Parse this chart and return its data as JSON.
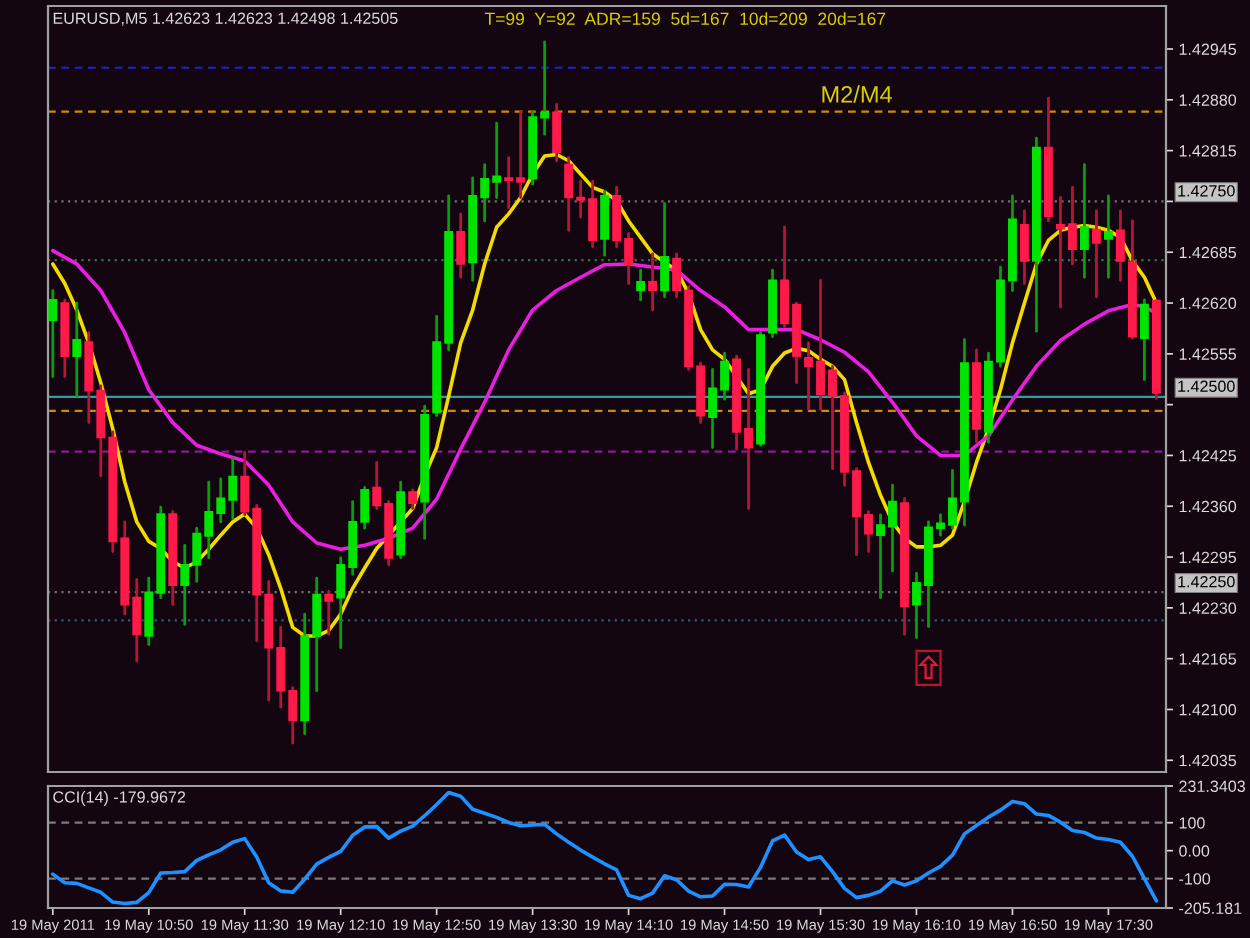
{
  "chart_data": [
    {
      "type": "candlestick",
      "title": "EURUSD,M5 1.42623 1.42623 1.42498 1.42505",
      "x": [
        "2011-05-19T10:10",
        "2011-05-19T10:15",
        "2011-05-19T10:20",
        "2011-05-19T10:25",
        "2011-05-19T10:30",
        "2011-05-19T10:35",
        "2011-05-19T10:40",
        "2011-05-19T10:45",
        "2011-05-19T10:50",
        "2011-05-19T10:55",
        "2011-05-19T11:00",
        "2011-05-19T11:05",
        "2011-05-19T11:10",
        "2011-05-19T11:15",
        "2011-05-19T11:20",
        "2011-05-19T11:25",
        "2011-05-19T11:30",
        "2011-05-19T11:35",
        "2011-05-19T11:40",
        "2011-05-19T11:45",
        "2011-05-19T11:50",
        "2011-05-19T11:55",
        "2011-05-19T12:00",
        "2011-05-19T12:05",
        "2011-05-19T12:10",
        "2011-05-19T12:15",
        "2011-05-19T12:20",
        "2011-05-19T12:25",
        "2011-05-19T12:30",
        "2011-05-19T12:35",
        "2011-05-19T12:40",
        "2011-05-19T12:45",
        "2011-05-19T12:50",
        "2011-05-19T12:55",
        "2011-05-19T13:00",
        "2011-05-19T13:05",
        "2011-05-19T13:10",
        "2011-05-19T13:15",
        "2011-05-19T13:20",
        "2011-05-19T13:25",
        "2011-05-19T13:30",
        "2011-05-19T13:35",
        "2011-05-19T13:40",
        "2011-05-19T13:45",
        "2011-05-19T13:50",
        "2011-05-19T13:55",
        "2011-05-19T14:00",
        "2011-05-19T14:05",
        "2011-05-19T14:10",
        "2011-05-19T14:15",
        "2011-05-19T14:20",
        "2011-05-19T14:25",
        "2011-05-19T14:30",
        "2011-05-19T14:35",
        "2011-05-19T14:40",
        "2011-05-19T14:45",
        "2011-05-19T14:50",
        "2011-05-19T14:55",
        "2011-05-19T15:00",
        "2011-05-19T15:05",
        "2011-05-19T15:10",
        "2011-05-19T15:15",
        "2011-05-19T15:20",
        "2011-05-19T15:25",
        "2011-05-19T15:30",
        "2011-05-19T15:35",
        "2011-05-19T15:40",
        "2011-05-19T15:45",
        "2011-05-19T15:50",
        "2011-05-19T15:55",
        "2011-05-19T16:00",
        "2011-05-19T16:05",
        "2011-05-19T16:10",
        "2011-05-19T16:15",
        "2011-05-19T16:20",
        "2011-05-19T16:25",
        "2011-05-19T16:30",
        "2011-05-19T16:35",
        "2011-05-19T16:40",
        "2011-05-19T16:45",
        "2011-05-19T16:50",
        "2011-05-19T16:55",
        "2011-05-19T17:00",
        "2011-05-19T17:05",
        "2011-05-19T17:10",
        "2011-05-19T17:15",
        "2011-05-19T17:20",
        "2011-05-19T17:25",
        "2011-05-19T17:30",
        "2011-05-19T17:35",
        "2011-05-19T17:40",
        "2011-05-19T17:45",
        "2011-05-19T17:50"
      ],
      "ohlc": [
        [
          1.42598,
          1.42636,
          1.42526,
          1.42624
        ],
        [
          1.4262,
          1.42624,
          1.42526,
          1.42552
        ],
        [
          1.42552,
          1.4262,
          1.42501,
          1.42573
        ],
        [
          1.4257,
          1.42582,
          1.42467,
          1.42508
        ],
        [
          1.42508,
          1.42514,
          1.42399,
          1.42448
        ],
        [
          1.42448,
          1.42455,
          1.42302,
          1.42315
        ],
        [
          1.42319,
          1.4234,
          1.42222,
          1.42234
        ],
        [
          1.42243,
          1.42266,
          1.42162,
          1.42196
        ],
        [
          1.42194,
          1.42268,
          1.42183,
          1.4225
        ],
        [
          1.42249,
          1.42359,
          1.42243,
          1.4235
        ],
        [
          1.4235,
          1.42353,
          1.42234,
          1.42259
        ],
        [
          1.42259,
          1.4231,
          1.42209,
          1.42285
        ],
        [
          1.42285,
          1.42332,
          1.42264,
          1.42325
        ],
        [
          1.42322,
          1.42391,
          1.42294,
          1.42353
        ],
        [
          1.42351,
          1.42395,
          1.4234,
          1.4237
        ],
        [
          1.42368,
          1.42421,
          1.42344,
          1.42398
        ],
        [
          1.42398,
          1.42429,
          1.42349,
          1.42353
        ],
        [
          1.42357,
          1.42361,
          1.42188,
          1.42247
        ],
        [
          1.42247,
          1.42264,
          1.42112,
          1.42179
        ],
        [
          1.42179,
          1.42205,
          1.42103,
          1.42124
        ],
        [
          1.42124,
          1.42128,
          1.42057,
          1.42086
        ],
        [
          1.42086,
          1.42222,
          1.42069,
          1.42194
        ],
        [
          1.42194,
          1.42268,
          1.42124,
          1.42247
        ],
        [
          1.42247,
          1.42251,
          1.42196,
          1.42239
        ],
        [
          1.42243,
          1.42294,
          1.42179,
          1.42285
        ],
        [
          1.42282,
          1.42366,
          1.42273,
          1.4234
        ],
        [
          1.4234,
          1.42384,
          1.42332,
          1.42381
        ],
        [
          1.42384,
          1.42416,
          1.42357,
          1.42361
        ],
        [
          1.42363,
          1.42366,
          1.42285,
          1.42294
        ],
        [
          1.42298,
          1.42391,
          1.42294,
          1.42378
        ],
        [
          1.42378,
          1.42381,
          1.42357,
          1.42364
        ],
        [
          1.42366,
          1.42488,
          1.42319,
          1.42477
        ],
        [
          1.4248,
          1.42603,
          1.42476,
          1.4257
        ],
        [
          1.42569,
          1.42757,
          1.4256,
          1.42711
        ],
        [
          1.42711,
          1.42734,
          1.42653,
          1.4267
        ],
        [
          1.42672,
          1.4278,
          1.42649,
          1.42757
        ],
        [
          1.42755,
          1.42797,
          1.42725,
          1.42779
        ],
        [
          1.42775,
          1.4285,
          1.42755,
          1.42782
        ],
        [
          1.4278,
          1.42806,
          1.42742,
          1.42777
        ],
        [
          1.4278,
          1.42865,
          1.42755,
          1.42775
        ],
        [
          1.42779,
          1.42865,
          1.42772,
          1.42858
        ],
        [
          1.42857,
          1.42954,
          1.42836,
          1.42864
        ],
        [
          1.42864,
          1.42874,
          1.42802,
          1.42813
        ],
        [
          1.42797,
          1.42806,
          1.42713,
          1.42755
        ],
        [
          1.42755,
          1.42776,
          1.4273,
          1.42752
        ],
        [
          1.42753,
          1.42776,
          1.42692,
          1.427
        ],
        [
          1.42702,
          1.42763,
          1.42681,
          1.42757
        ],
        [
          1.42757,
          1.42768,
          1.42692,
          1.427
        ],
        [
          1.42702,
          1.42709,
          1.42645,
          1.42669
        ],
        [
          1.42636,
          1.42662,
          1.42624,
          1.42647
        ],
        [
          1.42647,
          1.42683,
          1.42611,
          1.42636
        ],
        [
          1.42636,
          1.42747,
          1.42628,
          1.42679
        ],
        [
          1.42677,
          1.42683,
          1.42628,
          1.42636
        ],
        [
          1.42636,
          1.42641,
          1.42535,
          1.42539
        ],
        [
          1.42539,
          1.42543,
          1.42467,
          1.42476
        ],
        [
          1.42474,
          1.42535,
          1.42435,
          1.42511
        ],
        [
          1.42509,
          1.42556,
          1.42497,
          1.42545
        ],
        [
          1.42548,
          1.42552,
          1.42433,
          1.42455
        ],
        [
          1.42459,
          1.42535,
          1.42357,
          1.42435
        ],
        [
          1.4244,
          1.42582,
          1.42438,
          1.42579
        ],
        [
          1.42582,
          1.42662,
          1.42577,
          1.42649
        ],
        [
          1.42649,
          1.42717,
          1.4259,
          1.42594
        ],
        [
          1.42618,
          1.4262,
          1.42518,
          1.42552
        ],
        [
          1.4255,
          1.42569,
          1.42484,
          1.42539
        ],
        [
          1.42545,
          1.42649,
          1.42484,
          1.42503
        ],
        [
          1.42534,
          1.42539,
          1.42408,
          1.42501
        ],
        [
          1.42501,
          1.42505,
          1.42387,
          1.42404
        ],
        [
          1.42405,
          1.42408,
          1.42298,
          1.42347
        ],
        [
          1.42349,
          1.42353,
          1.42302,
          1.42325
        ],
        [
          1.42323,
          1.42349,
          1.42243,
          1.42336
        ],
        [
          1.42334,
          1.42387,
          1.42277,
          1.42366
        ],
        [
          1.42364,
          1.4237,
          1.42196,
          1.42232
        ],
        [
          1.42234,
          1.42274,
          1.42192,
          1.42262
        ],
        [
          1.42259,
          1.4234,
          1.42206,
          1.42333
        ],
        [
          1.42332,
          1.42349,
          1.42323,
          1.42338
        ],
        [
          1.42336,
          1.42406,
          1.42332,
          1.4237
        ],
        [
          1.42366,
          1.42573,
          1.42336,
          1.42543
        ],
        [
          1.42543,
          1.4256,
          1.42442,
          1.42459
        ],
        [
          1.42455,
          1.42556,
          1.42442,
          1.42545
        ],
        [
          1.42545,
          1.42666,
          1.42539,
          1.42649
        ],
        [
          1.42649,
          1.42757,
          1.42636,
          1.42727
        ],
        [
          1.4272,
          1.42738,
          1.42645,
          1.42674
        ],
        [
          1.42674,
          1.42831,
          1.42584,
          1.42819
        ],
        [
          1.42819,
          1.42882,
          1.42725,
          1.42731
        ],
        [
          1.4272,
          1.42755,
          1.42615,
          1.42715
        ],
        [
          1.42721,
          1.42768,
          1.4267,
          1.42689
        ],
        [
          1.42689,
          1.42797,
          1.42653,
          1.42717
        ],
        [
          1.42714,
          1.42738,
          1.42628,
          1.42697
        ],
        [
          1.42702,
          1.42757,
          1.42653,
          1.42711
        ],
        [
          1.42713,
          1.42738,
          1.42649,
          1.42674
        ],
        [
          1.42672,
          1.42725,
          1.42575,
          1.42577
        ],
        [
          1.42575,
          1.42624,
          1.42522,
          1.42618
        ],
        [
          1.42623,
          1.42623,
          1.42498,
          1.42505
        ]
      ],
      "colors": [
        "#00e400",
        "#ff1a4a",
        "#00e400",
        "#ff1a4a",
        "#ff1a4a",
        "#ff1a4a",
        "#ff1a4a",
        "#ff1a4a",
        "#00e400",
        "#00e400",
        "#ff1a4a",
        "#00e400",
        "#00e400",
        "#00e400",
        "#00e400",
        "#00e400",
        "#ff1a4a",
        "#ff1a4a",
        "#ff1a4a",
        "#ff1a4a",
        "#ff1a4a",
        "#00e400",
        "#00e400",
        "#ff1a4a",
        "#00e400",
        "#00e400",
        "#00e400",
        "#ff1a4a",
        "#ff1a4a",
        "#00e400",
        "#ff1a4a",
        "#00e400",
        "#00e400",
        "#00e400",
        "#ff1a4a",
        "#00e400",
        "#00e400",
        "#00e400",
        "#ff1a4a",
        "#ff1a4a",
        "#00e400",
        "#00e400",
        "#ff1a4a",
        "#ff1a4a",
        "#ff1a4a",
        "#ff1a4a",
        "#00e400",
        "#ff1a4a",
        "#ff1a4a",
        "#00e400",
        "#ff1a4a",
        "#00e400",
        "#ff1a4a",
        "#ff1a4a",
        "#ff1a4a",
        "#00e400",
        "#00e400",
        "#ff1a4a",
        "#ff1a4a",
        "#00e400",
        "#00e400",
        "#ff1a4a",
        "#ff1a4a",
        "#ff1a4a",
        "#ff1a4a",
        "#ff1a4a",
        "#ff1a4a",
        "#ff1a4a",
        "#ff1a4a",
        "#00e400",
        "#00e400",
        "#ff1a4a",
        "#00e400",
        "#00e400",
        "#00e400",
        "#00e400",
        "#00e400",
        "#ff1a4a",
        "#00e400",
        "#00e400",
        "#00e400",
        "#ff1a4a",
        "#00e400",
        "#ff1a4a",
        "#ff1a4a",
        "#ff1a4a",
        "#00e400",
        "#ff1a4a",
        "#00e400",
        "#ff1a4a",
        "#ff1a4a",
        "#00e400",
        "#ff1a4a"
      ],
      "series": [
        {
          "type": "line",
          "color": "#f2dc00",
          "values": [
            1.4267,
            1.42645,
            1.42611,
            1.42569,
            1.42518,
            1.42459,
            1.42391,
            1.4234,
            1.42315,
            1.42306,
            1.42289,
            1.42281,
            1.42289,
            1.42305,
            1.42323,
            1.4234,
            1.4235,
            1.42332,
            1.42298,
            1.42255,
            1.42205,
            1.42194,
            1.42194,
            1.42201,
            1.42222,
            1.42255,
            1.42281,
            1.42306,
            1.42323,
            1.4234,
            1.42357,
            1.42399,
            1.42435,
            1.42501,
            1.42569,
            1.42611,
            1.4267,
            1.42717,
            1.42734,
            1.42755,
            1.42785,
            1.42808,
            1.4281,
            1.42802,
            1.42785,
            1.42768,
            1.42762,
            1.42751,
            1.42725,
            1.42704,
            1.42683,
            1.42672,
            1.42662,
            1.42632,
            1.42586,
            1.4256,
            1.42548,
            1.42526,
            1.42504,
            1.42509,
            1.42539,
            1.42556,
            1.42562,
            1.42559,
            1.42548,
            1.42539,
            1.42522,
            1.42467,
            1.42416,
            1.42374,
            1.4234,
            1.42319,
            1.42308,
            1.42308,
            1.4231,
            1.42323,
            1.42366,
            1.42416,
            1.42459,
            1.42509,
            1.42569,
            1.4262,
            1.4267,
            1.427,
            1.42713,
            1.42717,
            1.42719,
            1.42717,
            1.42713,
            1.42704,
            1.42674,
            1.42653,
            1.4262
          ]
        },
        {
          "type": "line",
          "color": "#e81ee0",
          "x": [
            "2011-05-19T10:10",
            "2011-05-19T10:20",
            "2011-05-19T10:30",
            "2011-05-19T10:40",
            "2011-05-19T10:50",
            "2011-05-19T11:00",
            "2011-05-19T11:10",
            "2011-05-19T11:20",
            "2011-05-19T11:30",
            "2011-05-19T11:40",
            "2011-05-19T11:50",
            "2011-05-19T12:00",
            "2011-05-19T12:10",
            "2011-05-19T12:20",
            "2011-05-19T12:30",
            "2011-05-19T12:40",
            "2011-05-19T12:50",
            "2011-05-19T13:00",
            "2011-05-19T13:10",
            "2011-05-19T13:20",
            "2011-05-19T13:30",
            "2011-05-19T13:40",
            "2011-05-19T13:50",
            "2011-05-19T14:00",
            "2011-05-19T14:10",
            "2011-05-19T14:20",
            "2011-05-19T14:30",
            "2011-05-19T14:40",
            "2011-05-19T14:50",
            "2011-05-19T15:00",
            "2011-05-19T15:10",
            "2011-05-19T15:20",
            "2011-05-19T15:30",
            "2011-05-19T15:40",
            "2011-05-19T15:50",
            "2011-05-19T16:00",
            "2011-05-19T16:10",
            "2011-05-19T16:20",
            "2011-05-19T16:30",
            "2011-05-19T16:40",
            "2011-05-19T16:50",
            "2011-05-19T17:00",
            "2011-05-19T17:10",
            "2011-05-19T17:20",
            "2011-05-19T17:30",
            "2011-05-19T17:40",
            "2011-05-19T17:45",
            "2011-05-19T17:50"
          ],
          "values": [
            1.42687,
            1.4267,
            1.42636,
            1.42582,
            1.42509,
            1.42467,
            1.42438,
            1.42427,
            1.42418,
            1.42387,
            1.4234,
            1.42313,
            1.42305,
            1.4231,
            1.42319,
            1.42332,
            1.42369,
            1.42433,
            1.42493,
            1.4256,
            1.42611,
            1.42636,
            1.42653,
            1.42669,
            1.4267,
            1.42666,
            1.42662,
            1.42636,
            1.42615,
            1.42586,
            1.42586,
            1.42586,
            1.42573,
            1.42557,
            1.42532,
            1.42493,
            1.4245,
            1.42425,
            1.42425,
            1.4245,
            1.42496,
            1.42539,
            1.42572,
            1.42593,
            1.4261,
            1.42618,
            1.42615,
            1.42607
          ]
        }
      ],
      "xlim": [
        "2011-05-19T10:08",
        "2011-05-19T17:54"
      ],
      "ylim": [
        1.4202,
        1.43
      ],
      "yticks": [
        {
          "value": 1.42035,
          "label": "1.42035"
        },
        {
          "value": 1.421,
          "label": "1.42100"
        },
        {
          "value": 1.42165,
          "label": "1.42165"
        },
        {
          "value": 1.4223,
          "label": "1.42230"
        },
        {
          "value": 1.42295,
          "label": "1.42295"
        },
        {
          "value": 1.4236,
          "label": "1.42360"
        },
        {
          "value": 1.42425,
          "label": "1.42425"
        },
        {
          "value": 1.4249,
          "label": null
        },
        {
          "value": 1.42555,
          "label": "1.42555"
        },
        {
          "value": 1.4262,
          "label": "1.42620"
        },
        {
          "value": 1.42685,
          "label": "1.42685"
        },
        {
          "value": 1.4275,
          "label": null
        },
        {
          "value": 1.42815,
          "label": "1.42815"
        },
        {
          "value": 1.4288,
          "label": "1.42880"
        },
        {
          "value": 1.42945,
          "label": "1.42945"
        }
      ],
      "tick_labels": "y",
      "ref_lines": [
        {
          "axis": "y",
          "value": 1.42921,
          "color": "#2020d0",
          "line_style": "dashed"
        },
        {
          "axis": "y",
          "value": 1.42865,
          "color": "#d08a00",
          "line_style": "dashed"
        },
        {
          "axis": "y",
          "value": 1.4275,
          "color": "#707070",
          "line_style": "dotted",
          "label": "1.42750"
        },
        {
          "axis": "y",
          "value": 1.42675,
          "color": "#3c6e4a",
          "line_style": "dotted"
        },
        {
          "axis": "y",
          "value": 1.425,
          "color": "#2aa0a0",
          "line_style": "solid",
          "label": "1.42500"
        },
        {
          "axis": "y",
          "value": 1.42482,
          "color": "#d08a00",
          "line_style": "dashed"
        },
        {
          "axis": "y",
          "value": 1.4243,
          "color": "#8a1a9a",
          "line_style": "dashed"
        },
        {
          "axis": "y",
          "value": 1.4225,
          "color": "#707070",
          "line_style": "dotted",
          "label": "1.42250"
        },
        {
          "axis": "y",
          "value": 1.42214,
          "color": "#24607a",
          "line_style": "dotted"
        }
      ],
      "annotations": [
        "T=99  Y=92  ADR=159  5d=167  10d=209  20d=167",
        {
          "text": "M2/M4",
          "x": "2011-05-19T15:30",
          "y": 1.42865
        }
      ]
    },
    {
      "type": "line",
      "title": "CCI(14) -179.9672",
      "x": [
        "2011-05-19T10:10",
        "2011-05-19T10:15",
        "2011-05-19T10:20",
        "2011-05-19T10:25",
        "2011-05-19T10:30",
        "2011-05-19T10:35",
        "2011-05-19T10:40",
        "2011-05-19T10:45",
        "2011-05-19T10:50",
        "2011-05-19T10:55",
        "2011-05-19T11:00",
        "2011-05-19T11:05",
        "2011-05-19T11:10",
        "2011-05-19T11:15",
        "2011-05-19T11:20",
        "2011-05-19T11:25",
        "2011-05-19T11:30",
        "2011-05-19T11:35",
        "2011-05-19T11:40",
        "2011-05-19T11:45",
        "2011-05-19T11:50",
        "2011-05-19T11:55",
        "2011-05-19T12:00",
        "2011-05-19T12:05",
        "2011-05-19T12:10",
        "2011-05-19T12:15",
        "2011-05-19T12:20",
        "2011-05-19T12:25",
        "2011-05-19T12:30",
        "2011-05-19T12:35",
        "2011-05-19T12:40",
        "2011-05-19T12:45",
        "2011-05-19T12:50",
        "2011-05-19T12:55",
        "2011-05-19T13:00",
        "2011-05-19T13:05",
        "2011-05-19T13:10",
        "2011-05-19T13:15",
        "2011-05-19T13:20",
        "2011-05-19T13:25",
        "2011-05-19T13:30",
        "2011-05-19T13:35",
        "2011-05-19T13:40",
        "2011-05-19T13:45",
        "2011-05-19T13:50",
        "2011-05-19T13:55",
        "2011-05-19T14:00",
        "2011-05-19T14:05",
        "2011-05-19T14:10",
        "2011-05-19T14:15",
        "2011-05-19T14:20",
        "2011-05-19T14:25",
        "2011-05-19T14:30",
        "2011-05-19T14:35",
        "2011-05-19T14:40",
        "2011-05-19T14:45",
        "2011-05-19T14:50",
        "2011-05-19T14:55",
        "2011-05-19T15:00",
        "2011-05-19T15:05",
        "2011-05-19T15:10",
        "2011-05-19T15:15",
        "2011-05-19T15:20",
        "2011-05-19T15:25",
        "2011-05-19T15:30",
        "2011-05-19T15:35",
        "2011-05-19T15:40",
        "2011-05-19T15:45",
        "2011-05-19T15:50",
        "2011-05-19T15:55",
        "2011-05-19T16:00",
        "2011-05-19T16:05",
        "2011-05-19T16:10",
        "2011-05-19T16:15",
        "2011-05-19T16:20",
        "2011-05-19T16:25",
        "2011-05-19T16:30",
        "2011-05-19T16:35",
        "2011-05-19T16:40",
        "2011-05-19T16:45",
        "2011-05-19T16:50",
        "2011-05-19T16:55",
        "2011-05-19T17:00",
        "2011-05-19T17:05",
        "2011-05-19T17:10",
        "2011-05-19T17:15",
        "2011-05-19T17:20",
        "2011-05-19T17:25",
        "2011-05-19T17:30",
        "2011-05-19T17:35",
        "2011-05-19T17:40",
        "2011-05-19T17:45",
        "2011-05-19T17:50"
      ],
      "series": [
        {
          "color": "#1e90ff",
          "values": [
            -84,
            -115,
            -117,
            -133,
            -149,
            -184,
            -189,
            -185,
            -150,
            -80,
            -78,
            -75,
            -35,
            -15,
            3,
            30,
            43,
            -23,
            -115,
            -144,
            -149,
            -102,
            -48,
            -24,
            -3,
            55,
            85,
            86,
            45,
            70,
            88,
            125,
            165,
            208,
            195,
            148,
            134,
            119,
            101,
            89,
            92,
            94,
            60,
            30,
            2,
            -23,
            -47,
            -69,
            -160,
            -172,
            -152,
            -90,
            -104,
            -145,
            -165,
            -162,
            -120,
            -121,
            -130,
            -60,
            35,
            56,
            -5,
            -32,
            -22,
            -75,
            -135,
            -168,
            -160,
            -145,
            -108,
            -123,
            -108,
            -80,
            -56,
            -16,
            60,
            90,
            120,
            145,
            176,
            168,
            131,
            126,
            102,
            72,
            65,
            45,
            40,
            30,
            -20,
            -100,
            -179.9672
          ]
        }
      ],
      "xlim": [
        "2011-05-19T10:08",
        "2011-05-19T17:54"
      ],
      "xticks": [
        {
          "value": "2011-05-19T10:10",
          "label": "19 May 2011"
        },
        {
          "value": "2011-05-19T10:50",
          "label": "19 May 10:50"
        },
        {
          "value": "2011-05-19T11:30",
          "label": "19 May 11:30"
        },
        {
          "value": "2011-05-19T12:10",
          "label": "19 May 12:10"
        },
        {
          "value": "2011-05-19T12:50",
          "label": "19 May 12:50"
        },
        {
          "value": "2011-05-19T13:30",
          "label": "19 May 13:30"
        },
        {
          "value": "2011-05-19T14:10",
          "label": "19 May 14:10"
        },
        {
          "value": "2011-05-19T14:50",
          "label": "19 May 14:50"
        },
        {
          "value": "2011-05-19T15:30",
          "label": "19 May 15:30"
        },
        {
          "value": "2011-05-19T16:10",
          "label": "19 May 16:10"
        },
        {
          "value": "2011-05-19T16:50",
          "label": "19 May 16:50"
        },
        {
          "value": "2011-05-19T17:30",
          "label": "19 May 17:30"
        }
      ],
      "ylim": [
        -205.181,
        231.3403
      ],
      "yticks": [
        231.3403,
        100,
        {
          "value": 0,
          "label": "0.00"
        },
        -100,
        -205.181
      ],
      "ref_lines": [
        {
          "axis": "y",
          "value": 100,
          "color": "#7a7a7a",
          "line_style": "dashed"
        },
        {
          "axis": "y",
          "value": -100,
          "color": "#7a7a7a",
          "line_style": "dashed"
        }
      ]
    }
  ]
}
